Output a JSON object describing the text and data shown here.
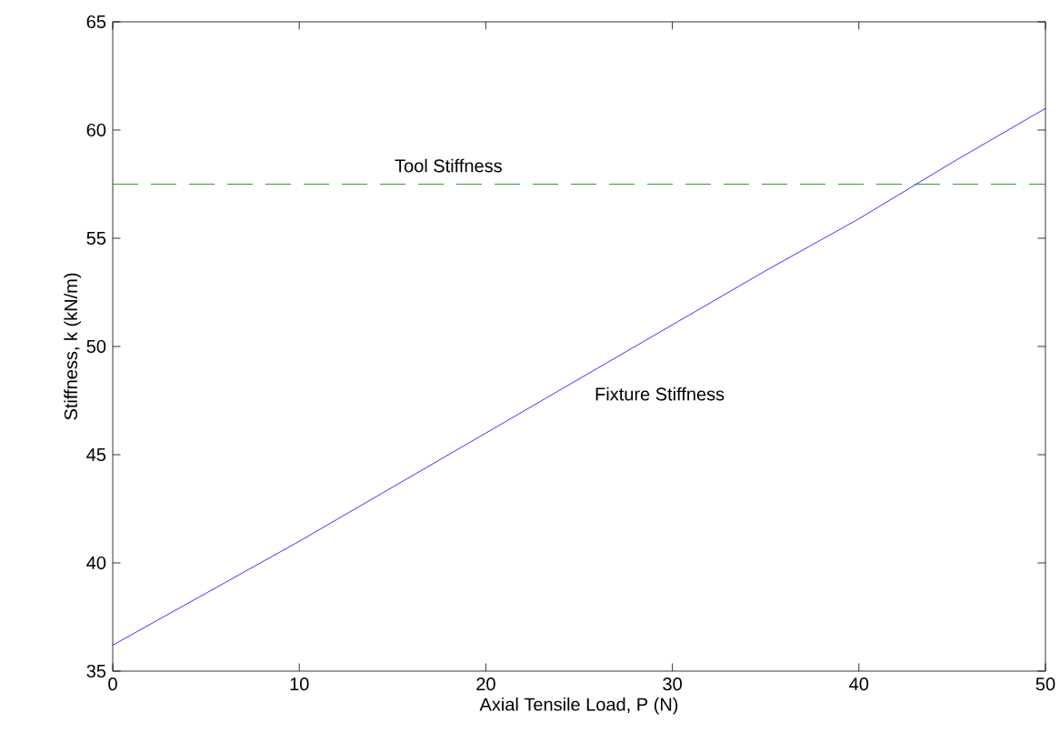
{
  "chart_data": {
    "type": "line",
    "xlabel": "Axial Tensile Load, P (N)",
    "ylabel": "Stiffness, k (kN/m)",
    "x": [
      0,
      5,
      10,
      15,
      20,
      25,
      30,
      35,
      40,
      45,
      50
    ],
    "series": [
      {
        "name": "Fixture Stiffness",
        "color": "#0000ff",
        "values": [
          36.2,
          38.6,
          41.0,
          43.5,
          46.0,
          48.5,
          51.0,
          53.5,
          55.9,
          58.5,
          61.0
        ]
      }
    ],
    "ref_lines": [
      {
        "axis": "y",
        "value": 57.5,
        "label": "Tool Stiffness",
        "color": "#008000",
        "line_style": "dashed"
      }
    ],
    "xlim": [
      0,
      50
    ],
    "xticks": [
      0,
      10,
      20,
      30,
      40,
      50
    ],
    "ylim": [
      35,
      65
    ],
    "yticks": [
      35,
      40,
      45,
      50,
      55,
      60,
      65
    ],
    "grid": false,
    "legend": false,
    "marker": "none",
    "line_style": "solid"
  }
}
